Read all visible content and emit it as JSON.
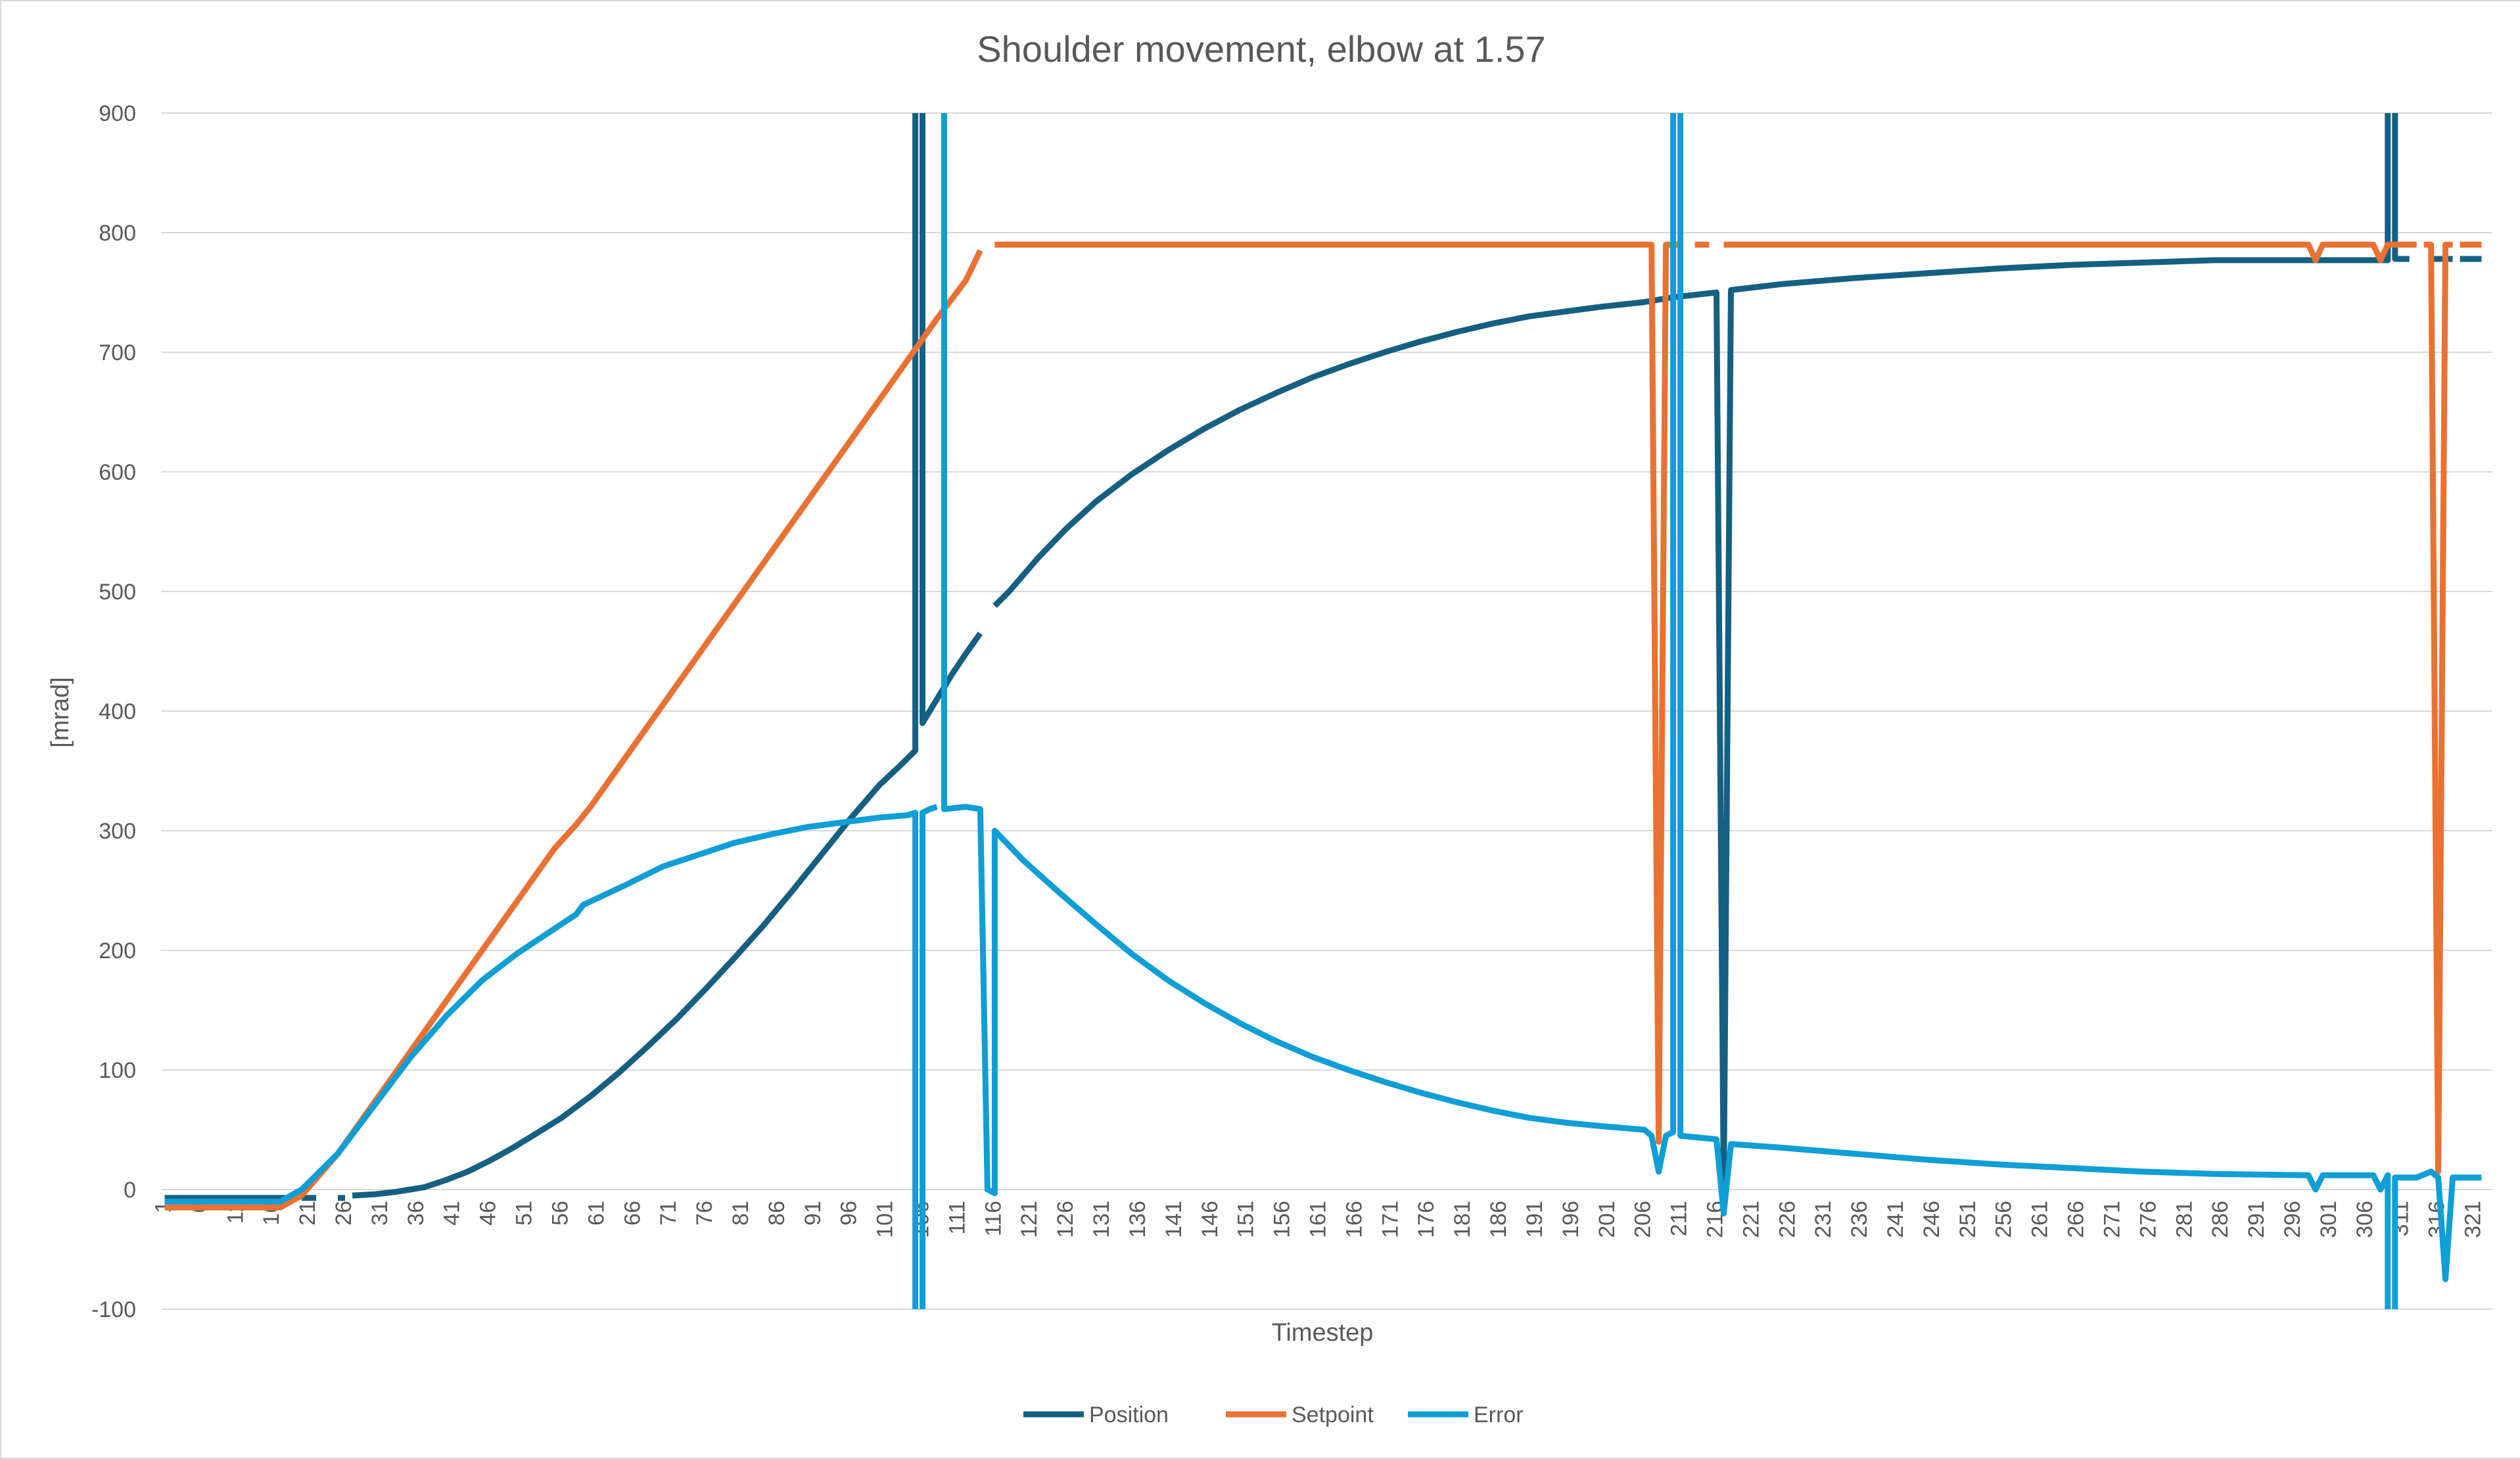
{
  "chart_data": {
    "type": "line",
    "title": "Shoulder movement, elbow at 1.57",
    "xlabel": "Timestep",
    "ylabel": "[mrad]",
    "ylim": [
      -100,
      900
    ],
    "yticks": [
      -100,
      0,
      100,
      200,
      300,
      400,
      500,
      600,
      700,
      800,
      900
    ],
    "xlim": [
      1,
      323
    ],
    "xtick_step": 5,
    "grid": "horizontal",
    "legend_position": "bottom",
    "colors": {
      "Position": "#156082",
      "Setpoint": "#e97132",
      "Error": "#0f9ed5",
      "grid": "#d9d9d9",
      "text": "#595959"
    },
    "series": [
      {
        "name": "Position",
        "color": "#156082",
        "points": [
          [
            1,
            -7
          ],
          [
            18,
            -7
          ],
          null,
          [
            20,
            -7
          ],
          [
            22,
            -7
          ],
          null,
          [
            25,
            -7
          ],
          [
            26,
            -7
          ],
          null,
          [
            27,
            -5
          ],
          [
            30,
            -4
          ],
          [
            33,
            -2
          ],
          [
            35,
            0
          ],
          [
            37,
            2
          ],
          [
            40,
            8
          ],
          [
            43,
            15
          ],
          [
            46,
            24
          ],
          [
            49,
            34
          ],
          [
            52,
            45
          ],
          [
            56,
            60
          ],
          [
            60,
            78
          ],
          [
            64,
            98
          ],
          [
            68,
            120
          ],
          [
            72,
            143
          ],
          [
            76,
            168
          ],
          [
            80,
            194
          ],
          [
            84,
            221
          ],
          [
            88,
            250
          ],
          [
            92,
            280
          ],
          [
            96,
            310
          ],
          [
            100,
            338
          ],
          [
            103,
            355
          ],
          [
            105,
            367
          ],
          [
            105,
            900
          ],
          null,
          [
            106,
            900
          ],
          [
            106,
            390
          ],
          [
            108,
            410
          ],
          [
            110,
            430
          ],
          [
            112,
            448
          ],
          [
            114,
            465
          ],
          null,
          [
            116,
            488
          ],
          [
            118,
            500
          ],
          [
            122,
            528
          ],
          [
            126,
            553
          ],
          [
            130,
            575
          ],
          [
            135,
            598
          ],
          [
            140,
            618
          ],
          [
            145,
            636
          ],
          [
            150,
            652
          ],
          [
            155,
            666
          ],
          [
            160,
            679
          ],
          [
            165,
            690
          ],
          [
            170,
            700
          ],
          [
            175,
            709
          ],
          [
            180,
            717
          ],
          [
            185,
            724
          ],
          [
            190,
            730
          ],
          [
            195,
            734
          ],
          [
            200,
            738
          ],
          [
            206,
            742
          ],
          [
            210,
            746
          ],
          [
            216,
            750
          ],
          [
            217,
            0
          ],
          [
            218,
            752
          ],
          [
            225,
            757
          ],
          [
            235,
            762
          ],
          [
            245,
            766
          ],
          [
            255,
            770
          ],
          [
            265,
            773
          ],
          [
            275,
            775
          ],
          [
            285,
            777
          ],
          [
            295,
            777
          ],
          [
            307,
            777
          ],
          [
            309,
            777
          ],
          [
            309,
            900
          ],
          null,
          [
            310,
            900
          ],
          [
            310,
            778
          ],
          [
            312,
            778
          ],
          null,
          [
            315,
            778
          ],
          [
            318,
            778
          ],
          null,
          [
            319,
            778
          ],
          [
            322,
            778
          ]
        ]
      },
      {
        "name": "Setpoint",
        "color": "#e97132",
        "points": [
          [
            1,
            -15
          ],
          [
            17,
            -15
          ],
          [
            20,
            -5
          ],
          [
            25,
            30
          ],
          [
            35,
            115
          ],
          [
            45,
            200
          ],
          [
            55,
            285
          ],
          [
            58,
            305
          ],
          [
            60,
            320
          ],
          [
            70,
            405
          ],
          [
            80,
            490
          ],
          [
            90,
            575
          ],
          [
            100,
            660
          ],
          [
            108,
            728
          ],
          [
            112,
            760
          ],
          [
            114,
            785
          ],
          null,
          [
            116,
            790
          ],
          [
            207,
            790
          ],
          [
            208,
            40
          ],
          [
            209,
            790
          ],
          [
            211,
            790
          ],
          null,
          [
            213,
            790
          ],
          [
            215,
            790
          ],
          null,
          [
            217,
            790
          ],
          [
            298,
            790
          ],
          [
            299,
            777
          ],
          [
            300,
            790
          ],
          [
            307,
            790
          ],
          [
            308,
            777
          ],
          [
            309,
            790
          ],
          [
            312,
            790
          ],
          [
            313,
            790
          ],
          null,
          [
            314,
            790
          ],
          [
            315,
            790
          ],
          [
            316,
            15
          ],
          [
            317,
            790
          ],
          [
            318,
            790
          ],
          null,
          [
            319,
            790
          ],
          [
            322,
            790
          ]
        ]
      },
      {
        "name": "Error",
        "color": "#0f9ed5",
        "points": [
          [
            1,
            -10
          ],
          [
            17,
            -10
          ],
          [
            20,
            0
          ],
          [
            25,
            30
          ],
          [
            30,
            70
          ],
          [
            35,
            110
          ],
          [
            40,
            145
          ],
          [
            45,
            175
          ],
          [
            50,
            198
          ],
          [
            55,
            218
          ],
          [
            58,
            230
          ],
          [
            59,
            238
          ],
          [
            65,
            255
          ],
          [
            70,
            270
          ],
          [
            75,
            280
          ],
          [
            80,
            290
          ],
          [
            85,
            297
          ],
          [
            90,
            303
          ],
          [
            95,
            307
          ],
          [
            100,
            311
          ],
          [
            104,
            313
          ],
          [
            105,
            315
          ],
          [
            105,
            -100
          ],
          null,
          [
            106,
            -100
          ],
          [
            106,
            315
          ],
          [
            107,
            318
          ],
          [
            108,
            320
          ],
          null,
          [
            109,
            900
          ],
          [
            109,
            318
          ],
          [
            112,
            320
          ],
          [
            114,
            318
          ],
          [
            115,
            0
          ],
          [
            116,
            -3
          ],
          [
            116,
            300
          ],
          [
            120,
            275
          ],
          [
            125,
            248
          ],
          [
            130,
            222
          ],
          [
            135,
            197
          ],
          [
            140,
            175
          ],
          [
            145,
            156
          ],
          [
            150,
            139
          ],
          [
            155,
            124
          ],
          [
            160,
            111
          ],
          [
            165,
            100
          ],
          [
            170,
            90
          ],
          [
            175,
            81
          ],
          [
            180,
            73
          ],
          [
            185,
            66
          ],
          [
            190,
            60
          ],
          [
            195,
            56
          ],
          [
            200,
            53
          ],
          [
            206,
            50
          ],
          [
            207,
            45
          ],
          [
            208,
            15
          ],
          [
            209,
            45
          ],
          [
            210,
            48
          ],
          [
            210,
            900
          ],
          null,
          [
            211,
            900
          ],
          [
            211,
            45
          ],
          [
            216,
            42
          ],
          [
            217,
            -20
          ],
          [
            218,
            38
          ],
          [
            225,
            35
          ],
          [
            235,
            30
          ],
          [
            245,
            25
          ],
          [
            255,
            21
          ],
          [
            265,
            18
          ],
          [
            275,
            15
          ],
          [
            285,
            13
          ],
          [
            298,
            12
          ],
          [
            299,
            0
          ],
          [
            300,
            12
          ],
          [
            307,
            12
          ],
          [
            308,
            0
          ],
          [
            309,
            12
          ],
          [
            309,
            -100
          ],
          null,
          [
            310,
            -100
          ],
          [
            310,
            10
          ],
          [
            313,
            10
          ],
          [
            315,
            15
          ],
          [
            316,
            10
          ],
          [
            317,
            -75
          ],
          [
            318,
            10
          ],
          [
            322,
            10
          ]
        ]
      }
    ]
  }
}
